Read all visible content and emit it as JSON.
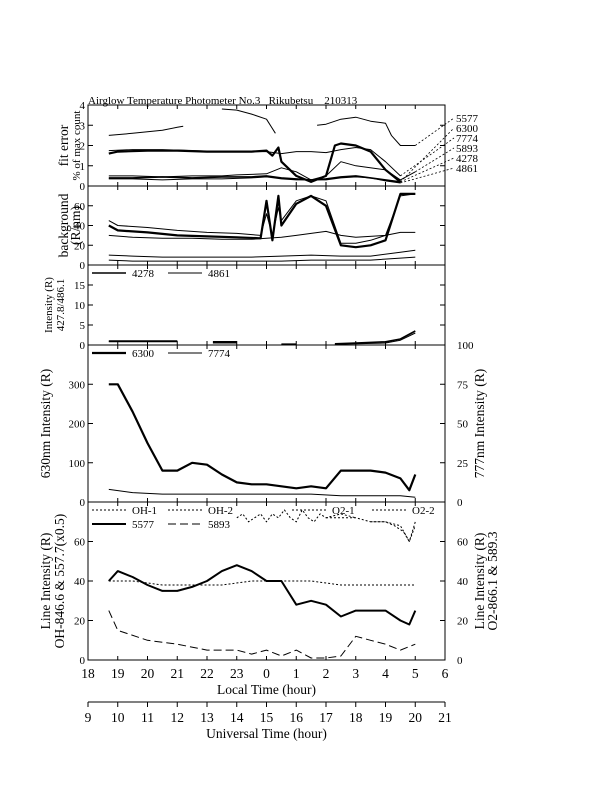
{
  "chart_data": {
    "type": "line",
    "title": "Airglow Temperature Photometer No.3   Rikubetsu    210313",
    "x_local": {
      "label": "Local Time (hour)",
      "ticks": [
        "18",
        "19",
        "20",
        "21",
        "22",
        "23",
        "0",
        "1",
        "2",
        "3",
        "4",
        "5",
        "6"
      ],
      "range": [
        18,
        30
      ]
    },
    "x_universal": {
      "label": "Universal Time (hour)",
      "ticks": [
        "9",
        "10",
        "11",
        "12",
        "13",
        "14",
        "15",
        "16",
        "17",
        "18",
        "19",
        "20",
        "21"
      ],
      "range": [
        9,
        21
      ]
    },
    "panels": [
      {
        "id": "fit-error",
        "ylabel": "fit error",
        "ylabel2": "% of max count",
        "yticks": [
          "0",
          "1",
          "2",
          "3",
          "4"
        ],
        "ylim": [
          0,
          4
        ],
        "legend_right": [
          "5577",
          "6300",
          "7774",
          "5893",
          "4278",
          "4861"
        ],
        "series": [
          {
            "name": "5577",
            "width": 1.0,
            "x": [
              18.7,
              19.5,
              20.5,
              21.0,
              21.2,
              null,
              22.5,
              23.0,
              23.5,
              24.0,
              24.3,
              null,
              25.7,
              26.0,
              26.5,
              27.0,
              27.5,
              28.0,
              28.2,
              28.5,
              29.0
            ],
            "y": [
              2.5,
              2.6,
              2.75,
              2.9,
              2.95,
              null,
              3.8,
              3.75,
              3.55,
              3.3,
              2.6,
              null,
              3.0,
              3.05,
              3.3,
              3.4,
              3.2,
              3.1,
              2.5,
              2.0,
              2.0
            ]
          },
          {
            "name": "6300",
            "width": 2.2,
            "x": [
              18.7,
              19.0,
              20.0,
              21.0,
              22.0,
              23.0,
              23.5,
              24.0,
              24.2,
              24.4,
              24.5,
              25.0,
              25.5,
              26.0,
              26.3,
              26.5,
              27.0,
              27.5,
              28.0,
              28.5
            ],
            "y": [
              1.6,
              1.7,
              1.75,
              1.75,
              1.7,
              1.7,
              1.7,
              1.75,
              1.5,
              1.9,
              1.2,
              0.5,
              0.2,
              0.5,
              2.0,
              2.1,
              2.0,
              1.7,
              0.8,
              0.2
            ]
          },
          {
            "name": "7774",
            "width": 1.0,
            "x": [
              18.7,
              19.5,
              20.5,
              21.5,
              22.5,
              23.5,
              24.0,
              24.5,
              25.0,
              25.5,
              26.0,
              26.5,
              27.0,
              27.5,
              28.0,
              28.5
            ],
            "y": [
              1.75,
              1.8,
              1.8,
              1.75,
              1.7,
              1.7,
              1.7,
              1.6,
              1.7,
              1.7,
              1.65,
              1.8,
              1.9,
              1.8,
              1.2,
              0.5
            ]
          },
          {
            "name": "5893",
            "width": 1.0,
            "x": [
              18.7,
              19.5,
              20.5,
              21.5,
              22.5,
              23.0,
              24.0,
              24.5,
              25.0,
              25.5,
              26.0,
              26.5,
              27.0,
              28.0,
              28.5,
              29.0
            ],
            "y": [
              0.5,
              0.5,
              0.45,
              0.5,
              0.5,
              0.55,
              0.6,
              0.9,
              0.7,
              0.3,
              0.5,
              1.2,
              1.0,
              0.8,
              0.3,
              0.7
            ]
          },
          {
            "name": "4278",
            "width": 1.6,
            "x": [
              18.7,
              19.5,
              20.5,
              21.5,
              22.5,
              23.5,
              24.0,
              24.5,
              25.0,
              25.5,
              26.0,
              26.5,
              27.0,
              27.5,
              28.0,
              28.5
            ],
            "y": [
              0.4,
              0.4,
              0.45,
              0.4,
              0.45,
              0.45,
              0.5,
              0.4,
              0.35,
              0.3,
              0.35,
              0.45,
              0.5,
              0.4,
              0.3,
              0.2
            ]
          },
          {
            "name": "4861",
            "width": 1.0,
            "x": [
              18.7,
              19.5,
              20.5,
              21.5,
              22.5,
              23.5,
              24.0,
              24.5,
              25.0,
              25.5,
              26.0,
              26.5,
              27.0,
              27.5,
              28.0,
              28.5
            ],
            "y": [
              0.35,
              0.35,
              0.3,
              0.35,
              0.35,
              0.4,
              0.45,
              0.35,
              0.3,
              0.3,
              0.3,
              0.4,
              0.45,
              0.4,
              0.25,
              0.15
            ]
          }
        ]
      },
      {
        "id": "background",
        "ylabel": "background",
        "ylabel2": "(R/nm)",
        "yticks": [
          "0",
          "20",
          "40",
          "60"
        ],
        "ylim": [
          0,
          80
        ],
        "series": [
          {
            "name": "6300",
            "width": 2.2,
            "x": [
              18.7,
              19.0,
              20.0,
              21.0,
              22.0,
              23.0,
              23.8,
              24.0,
              24.2,
              24.4,
              24.5,
              25.0,
              25.5,
              26.0,
              26.5,
              27.0,
              27.5,
              28.0,
              28.5,
              29.0
            ],
            "y": [
              40,
              35,
              33,
              30,
              29,
              28,
              27,
              65,
              25,
              70,
              40,
              62,
              70,
              60,
              20,
              18,
              20,
              25,
              72,
              72
            ]
          },
          {
            "name": "5577",
            "width": 1.0,
            "x": [
              18.7,
              19.0,
              20.0,
              21.0,
              22.0,
              23.0,
              23.8,
              24.0,
              24.2,
              24.4,
              24.5,
              25.0,
              25.5,
              26.0,
              26.5,
              27.0,
              27.5,
              28.0,
              28.5,
              29.0
            ],
            "y": [
              45,
              40,
              38,
              35,
              33,
              32,
              30,
              52,
              30,
              58,
              45,
              65,
              70,
              65,
              22,
              22,
              25,
              30,
              70,
              72
            ]
          },
          {
            "name": "7774",
            "width": 1.0,
            "x": [
              18.7,
              19.5,
              20.5,
              21.5,
              22.5,
              23.5,
              24.0,
              24.5,
              25.0,
              25.5,
              26.0,
              26.5,
              27.0,
              28.0,
              28.5,
              29.0
            ],
            "y": [
              30,
              28,
              27,
              27,
              26,
              26,
              27,
              28,
              30,
              32,
              34,
              30,
              28,
              30,
              33,
              33
            ]
          },
          {
            "name": "5893",
            "width": 1.0,
            "x": [
              18.7,
              19.5,
              20.5,
              21.5,
              22.5,
              23.5,
              24.5,
              25.5,
              26.5,
              27.5,
              28.5,
              29.0
            ],
            "y": [
              10,
              9,
              8,
              8,
              8,
              8,
              9,
              10,
              9,
              9,
              13,
              15
            ]
          },
          {
            "name": "4278",
            "width": 1.0,
            "x": [
              18.7,
              19.5,
              20.5,
              21.5,
              22.5,
              23.5,
              24.5,
              25.5,
              26.5,
              27.5,
              28.5,
              29.0
            ],
            "y": [
              5,
              4,
              4,
              4,
              4,
              4,
              4,
              5,
              5,
              5,
              7,
              8
            ]
          }
        ]
      },
      {
        "id": "blue-intensity",
        "ylabel": "Intensity (R)",
        "ylabel2": "427.8/486.1",
        "yticks": [
          "0",
          "5",
          "10",
          "15"
        ],
        "ylim": [
          0,
          20
        ],
        "legend": [
          "4278",
          "4861"
        ],
        "series": [
          {
            "name": "4278",
            "width": 1.6,
            "x": [
              18.7,
              21.0,
              null,
              22.2,
              23.0,
              null,
              24.5,
              25.0,
              null,
              26.3,
              27.0,
              28.0,
              28.5,
              29.0
            ],
            "y": [
              1.0,
              1.0,
              null,
              0.8,
              0.8,
              null,
              0.2,
              0.2,
              null,
              0.3,
              0.5,
              0.8,
              1.5,
              3.5
            ]
          },
          {
            "name": "4861",
            "width": 1.0,
            "x": [
              18.7,
              21.0,
              null,
              22.2,
              23.0,
              null,
              24.5,
              25.0,
              null,
              26.3,
              27.0,
              28.0,
              28.5,
              29.0
            ],
            "y": [
              0.8,
              0.8,
              null,
              0.5,
              0.5,
              null,
              0.1,
              0.1,
              null,
              0.2,
              0.3,
              0.5,
              1.2,
              3.0
            ]
          }
        ]
      },
      {
        "id": "red-intensity",
        "ylabel": "630nm Intensity (R)",
        "ylabel_right": "777nm Intensity (R)",
        "yticks": [
          "0",
          "100",
          "200",
          "300"
        ],
        "ylim": [
          0,
          400
        ],
        "yticks_right": [
          "0",
          "25",
          "50",
          "75",
          "100"
        ],
        "ylim_right": [
          0,
          100
        ],
        "legend": [
          "6300",
          "7774"
        ],
        "series": [
          {
            "name": "6300",
            "width": 2.2,
            "x": [
              18.7,
              19.0,
              19.5,
              20.0,
              20.5,
              21.0,
              21.5,
              22.0,
              22.5,
              23.0,
              23.5,
              24.0,
              24.5,
              25.0,
              25.5,
              26.0,
              26.5,
              27.0,
              27.5,
              28.0,
              28.5,
              28.8,
              29.0
            ],
            "y": [
              300,
              300,
              230,
              150,
              80,
              80,
              100,
              95,
              70,
              50,
              45,
              45,
              40,
              35,
              40,
              35,
              80,
              80,
              80,
              75,
              60,
              30,
              70
            ]
          },
          {
            "name": "7774",
            "width": 1.0,
            "axis": "right",
            "x": [
              18.7,
              19.5,
              20.5,
              21.5,
              22.5,
              23.5,
              24.5,
              25.5,
              26.5,
              27.5,
              28.5,
              29.0
            ],
            "y": [
              8,
              6,
              5,
              5,
              5,
              5,
              5,
              5,
              4,
              4,
              4,
              3
            ]
          }
        ]
      },
      {
        "id": "line-intensity",
        "ylabel": "Line Intensity (R)",
        "ylabel2": "OH-846.6 & 557.7(x0.5)",
        "ylabel_right": "Line Intensity (R)",
        "ylabel_right2": "O2-866.1 & 589.3",
        "yticks": [
          "0",
          "20",
          "40",
          "60"
        ],
        "ylim": [
          0,
          80
        ],
        "yticks_right": [
          "0",
          "20",
          "40",
          "60"
        ],
        "ylim_right": [
          0,
          80
        ],
        "legend": [
          "OH-1",
          "OH-2",
          "O2-1",
          "O2-2",
          "5577",
          "5893"
        ],
        "series": [
          {
            "name": "OH-1",
            "width": 1.0,
            "dash": "2,2",
            "x": [
              18.7,
              19.5,
              20.5,
              21.5,
              22.5,
              23.5,
              24.5,
              25.5,
              26.5,
              27.5,
              28.5,
              29.0
            ],
            "y": [
              40,
              40,
              38,
              38,
              38,
              40,
              40,
              40,
              38,
              38,
              38,
              38
            ]
          },
          {
            "name": "OH-2",
            "width": 1.0,
            "dash": "2,2",
            "x": [
              23.0,
              23.2,
              23.4,
              23.6,
              23.8,
              24.0,
              24.2,
              24.4,
              24.6,
              24.8,
              25.0,
              25.2,
              25.4,
              25.6,
              25.8,
              26.0,
              26.5,
              27.0
            ],
            "y": [
              72,
              74,
              70,
              72,
              74,
              70,
              74,
              72,
              76,
              72,
              70,
              76,
              72,
              70,
              74,
              72,
              74,
              72
            ]
          },
          {
            "name": "O2-1",
            "width": 1.0,
            "dash": "2,2",
            "axis": "right",
            "x": [
              26.0,
              26.5,
              27.0,
              27.5,
              28.0,
              28.5,
              28.8,
              29.0
            ],
            "y": [
              72,
              72,
              72,
              70,
              70,
              68,
              60,
              70
            ]
          },
          {
            "name": "O2-2",
            "width": 1.0,
            "dash": "2,2",
            "axis": "right",
            "x": [
              27.5,
              28.0,
              28.3,
              28.6,
              28.8,
              29.0
            ],
            "y": [
              70,
              70,
              68,
              65,
              60,
              68
            ]
          },
          {
            "name": "5577",
            "width": 2.0,
            "x": [
              18.7,
              19.0,
              19.5,
              20.0,
              20.5,
              21.0,
              21.5,
              22.0,
              22.5,
              23.0,
              23.5,
              24.0,
              24.5,
              25.0,
              25.5,
              26.0,
              26.5,
              27.0,
              27.5,
              28.0,
              28.5,
              28.8,
              29.0
            ],
            "y": [
              40,
              45,
              42,
              38,
              35,
              35,
              37,
              40,
              45,
              48,
              45,
              40,
              40,
              28,
              30,
              28,
              22,
              25,
              25,
              25,
              20,
              18,
              25
            ]
          },
          {
            "name": "5893",
            "width": 1.0,
            "dash": "8,4",
            "x": [
              18.7,
              19.0,
              20.0,
              21.0,
              22.0,
              23.0,
              23.5,
              24.0,
              24.5,
              25.0,
              25.5,
              26.0,
              26.5,
              27.0,
              27.5,
              28.0,
              28.5,
              29.0
            ],
            "y": [
              25,
              15,
              10,
              8,
              5,
              5,
              3,
              5,
              2,
              5,
              1,
              1,
              2,
              12,
              10,
              8,
              5,
              8
            ]
          }
        ]
      }
    ]
  }
}
